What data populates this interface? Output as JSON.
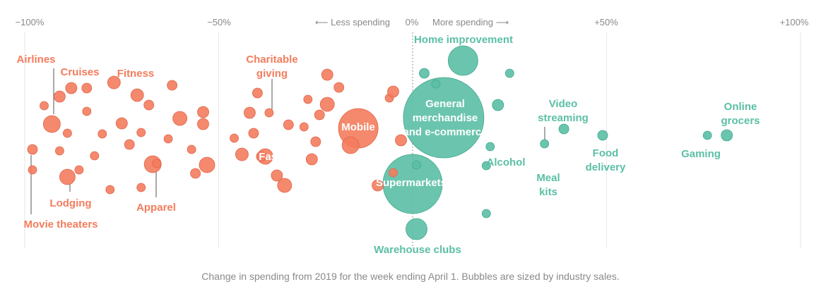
{
  "chart_data": {
    "type": "scatter",
    "subtype": "bubble",
    "xlim": [
      -100,
      100
    ],
    "ticks": [
      {
        "value": -100,
        "label": "−100%"
      },
      {
        "value": -50,
        "label": "−50%"
      },
      {
        "value": 0,
        "label": "0%"
      },
      {
        "value": 50,
        "label": "+50%"
      },
      {
        "value": 100,
        "label": "+100%"
      }
    ],
    "direction_labels": {
      "negative": "⟵ Less spending",
      "positive": "More spending ⟶"
    },
    "colors": {
      "decrease": "#f47c5d",
      "increase": "#5bbfa5",
      "grid": "#e6e6e6",
      "zero": "#888888"
    },
    "bubbles": [
      {
        "name": "Airlines",
        "x": -93,
        "r": 12
      },
      {
        "name": "Cruises",
        "x": -88,
        "r": 8
      },
      {
        "name": "Fitness",
        "x": -71,
        "r": 9
      },
      {
        "name": "Lodging",
        "x": -89,
        "r": 11
      },
      {
        "name": "Apparel",
        "x": -67,
        "r": 12
      },
      {
        "name": "Movie theaters",
        "x": -98,
        "r": 7
      },
      {
        "name": "Charitable giving",
        "x": -37,
        "r": 6
      },
      {
        "name": "Fast food",
        "x": -38,
        "r": 11
      },
      {
        "name": "Mobile",
        "x": -14,
        "r": 28
      },
      {
        "name": "Home improvement",
        "x": 13,
        "r": 21
      },
      {
        "name": "General merchandise and e-commerce",
        "x": 8,
        "r": 57
      },
      {
        "name": "Supermarkets",
        "x": 0,
        "r": 42
      },
      {
        "name": "Warehouse clubs",
        "x": 1,
        "r": 15
      },
      {
        "name": "Alcohol",
        "x": 20,
        "r": 6
      },
      {
        "name": "Video streaming",
        "x": 39,
        "r": 7
      },
      {
        "name": "Meal kits",
        "x": 34,
        "r": 6
      },
      {
        "name": "Food delivery",
        "x": 49,
        "r": 7
      },
      {
        "name": "Gaming",
        "x": 76,
        "r": 6
      },
      {
        "name": "Online grocers",
        "x": 81,
        "r": 8
      },
      {
        "x": -98,
        "r": 6
      },
      {
        "x": -95,
        "r": 6
      },
      {
        "x": -91,
        "r": 8
      },
      {
        "x": -91,
        "r": 6
      },
      {
        "x": -89,
        "r": 6
      },
      {
        "x": -86,
        "r": 6
      },
      {
        "x": -84,
        "r": 6
      },
      {
        "x": -84,
        "r": 7
      },
      {
        "x": -82,
        "r": 6
      },
      {
        "x": -80,
        "r": 6
      },
      {
        "x": -78,
        "r": 6
      },
      {
        "x": -77,
        "r": 9
      },
      {
        "x": -75,
        "r": 8
      },
      {
        "x": -73,
        "r": 7
      },
      {
        "x": -70,
        "r": 6
      },
      {
        "x": -70,
        "r": 6
      },
      {
        "x": -68,
        "r": 7
      },
      {
        "x": -66,
        "r": 6
      },
      {
        "x": -63,
        "r": 6
      },
      {
        "x": -62,
        "r": 7
      },
      {
        "x": -60,
        "r": 10
      },
      {
        "x": -57,
        "r": 6
      },
      {
        "x": -56,
        "r": 7
      },
      {
        "x": -54,
        "r": 8
      },
      {
        "x": -54,
        "r": 8
      },
      {
        "x": -53,
        "r": 11
      },
      {
        "x": -46,
        "r": 6
      },
      {
        "x": -44,
        "r": 9
      },
      {
        "x": -42,
        "r": 8
      },
      {
        "x": -41,
        "r": 7
      },
      {
        "x": -40,
        "r": 7
      },
      {
        "x": -39,
        "r": 7
      },
      {
        "x": -35,
        "r": 8
      },
      {
        "x": -33,
        "r": 10
      },
      {
        "x": -32,
        "r": 7
      },
      {
        "x": -28,
        "r": 6
      },
      {
        "x": -27,
        "r": 6
      },
      {
        "x": -26,
        "r": 8
      },
      {
        "x": -25,
        "r": 7
      },
      {
        "x": -24,
        "r": 7
      },
      {
        "x": -22,
        "r": 8
      },
      {
        "x": -22,
        "r": 10
      },
      {
        "x": -19,
        "r": 7
      },
      {
        "x": -16,
        "r": 12
      },
      {
        "x": -9,
        "r": 8
      },
      {
        "x": -6,
        "r": 6
      },
      {
        "x": -5,
        "r": 6
      },
      {
        "x": -5,
        "r": 8
      },
      {
        "x": -3,
        "r": 8
      },
      {
        "x": 3,
        "r": 7
      },
      {
        "x": 1,
        "r": 6
      },
      {
        "x": 6,
        "r": 6
      },
      {
        "x": 22,
        "r": 8
      },
      {
        "x": 19,
        "r": 6
      },
      {
        "x": 25,
        "r": 6
      },
      {
        "x": 19,
        "r": 6
      }
    ]
  },
  "caption": "Change in spending from 2019 for the week ending April 1. Bubbles are sized by industry sales."
}
